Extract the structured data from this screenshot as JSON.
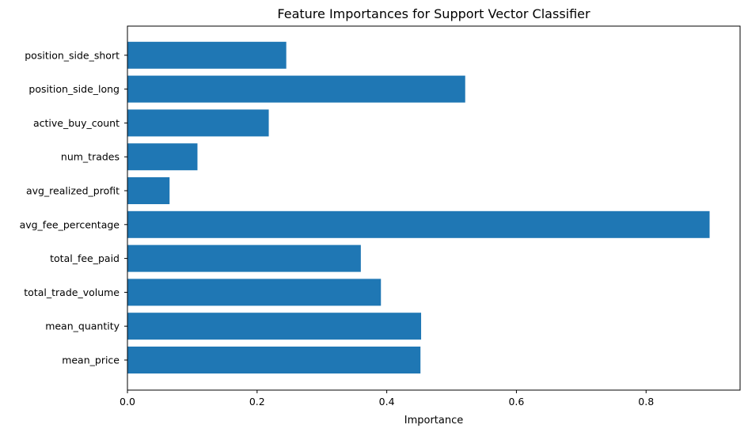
{
  "chart_data": {
    "type": "bar",
    "orientation": "horizontal",
    "title": "Feature Importances for Support Vector Classifier",
    "xlabel": "Importance",
    "ylabel": "",
    "categories": [
      "mean_price",
      "mean_quantity",
      "total_trade_volume",
      "total_fee_paid",
      "avg_fee_percentage",
      "avg_realized_profit",
      "num_trades",
      "active_buy_count",
      "position_side_long",
      "position_side_short"
    ],
    "values": [
      0.452,
      0.453,
      0.391,
      0.36,
      0.898,
      0.065,
      0.108,
      0.218,
      0.521,
      0.245
    ],
    "xlim": [
      0,
      0.945
    ],
    "xticks": [
      0.0,
      0.2,
      0.4,
      0.6,
      0.8
    ],
    "xtick_labels": [
      "0.0",
      "0.2",
      "0.4",
      "0.6",
      "0.8"
    ],
    "bar_color": "#1f77b4",
    "grid": false,
    "legend": "none"
  }
}
